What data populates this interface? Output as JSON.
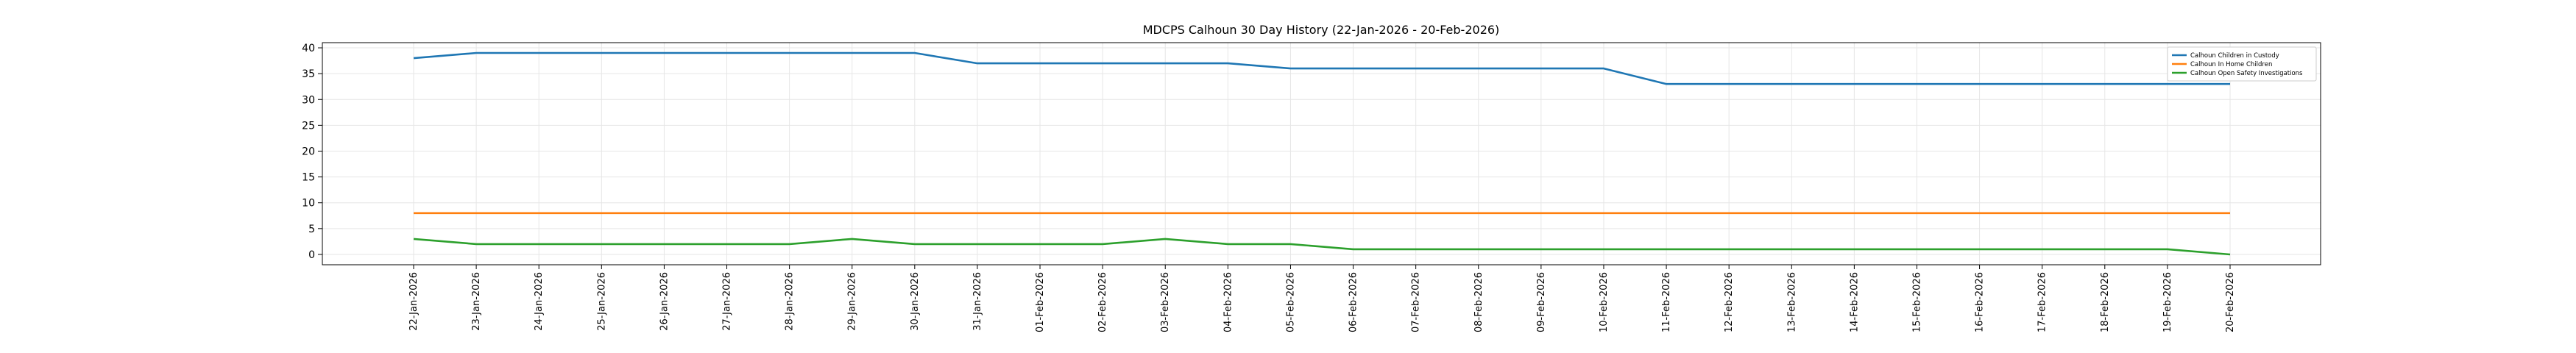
{
  "chart_data": {
    "type": "line",
    "title": "MDCPS Calhoun 30 Day History (22-Jan-2026 - 20-Feb-2026)",
    "xlabel": "",
    "ylabel": "",
    "ylim": [
      -2,
      41
    ],
    "yticks": [
      0,
      5,
      10,
      15,
      20,
      25,
      30,
      35,
      40
    ],
    "grid": true,
    "legend_position": "top-right",
    "categories": [
      "22-Jan-2026",
      "23-Jan-2026",
      "24-Jan-2026",
      "25-Jan-2026",
      "26-Jan-2026",
      "27-Jan-2026",
      "28-Jan-2026",
      "29-Jan-2026",
      "30-Jan-2026",
      "31-Jan-2026",
      "01-Feb-2026",
      "02-Feb-2026",
      "03-Feb-2026",
      "04-Feb-2026",
      "05-Feb-2026",
      "06-Feb-2026",
      "07-Feb-2026",
      "08-Feb-2026",
      "09-Feb-2026",
      "10-Feb-2026",
      "11-Feb-2026",
      "12-Feb-2026",
      "13-Feb-2026",
      "14-Feb-2026",
      "15-Feb-2026",
      "16-Feb-2026",
      "17-Feb-2026",
      "18-Feb-2026",
      "19-Feb-2026",
      "20-Feb-2026"
    ],
    "series": [
      {
        "name": "Calhoun Children in Custody",
        "color": "#1f77b4",
        "values": [
          38,
          39,
          39,
          39,
          39,
          39,
          39,
          39,
          39,
          37,
          37,
          37,
          37,
          37,
          36,
          36,
          36,
          36,
          36,
          36,
          33,
          33,
          33,
          33,
          33,
          33,
          33,
          33,
          33,
          33
        ]
      },
      {
        "name": "Calhoun In Home Children",
        "color": "#ff7f0e",
        "values": [
          8,
          8,
          8,
          8,
          8,
          8,
          8,
          8,
          8,
          8,
          8,
          8,
          8,
          8,
          8,
          8,
          8,
          8,
          8,
          8,
          8,
          8,
          8,
          8,
          8,
          8,
          8,
          8,
          8,
          8
        ]
      },
      {
        "name": "Calhoun Open Safety Investigations",
        "color": "#2ca02c",
        "values": [
          3,
          2,
          2,
          2,
          2,
          2,
          2,
          3,
          2,
          2,
          2,
          2,
          3,
          2,
          2,
          1,
          1,
          1,
          1,
          1,
          1,
          1,
          1,
          1,
          1,
          1,
          1,
          1,
          1,
          0
        ]
      }
    ]
  }
}
